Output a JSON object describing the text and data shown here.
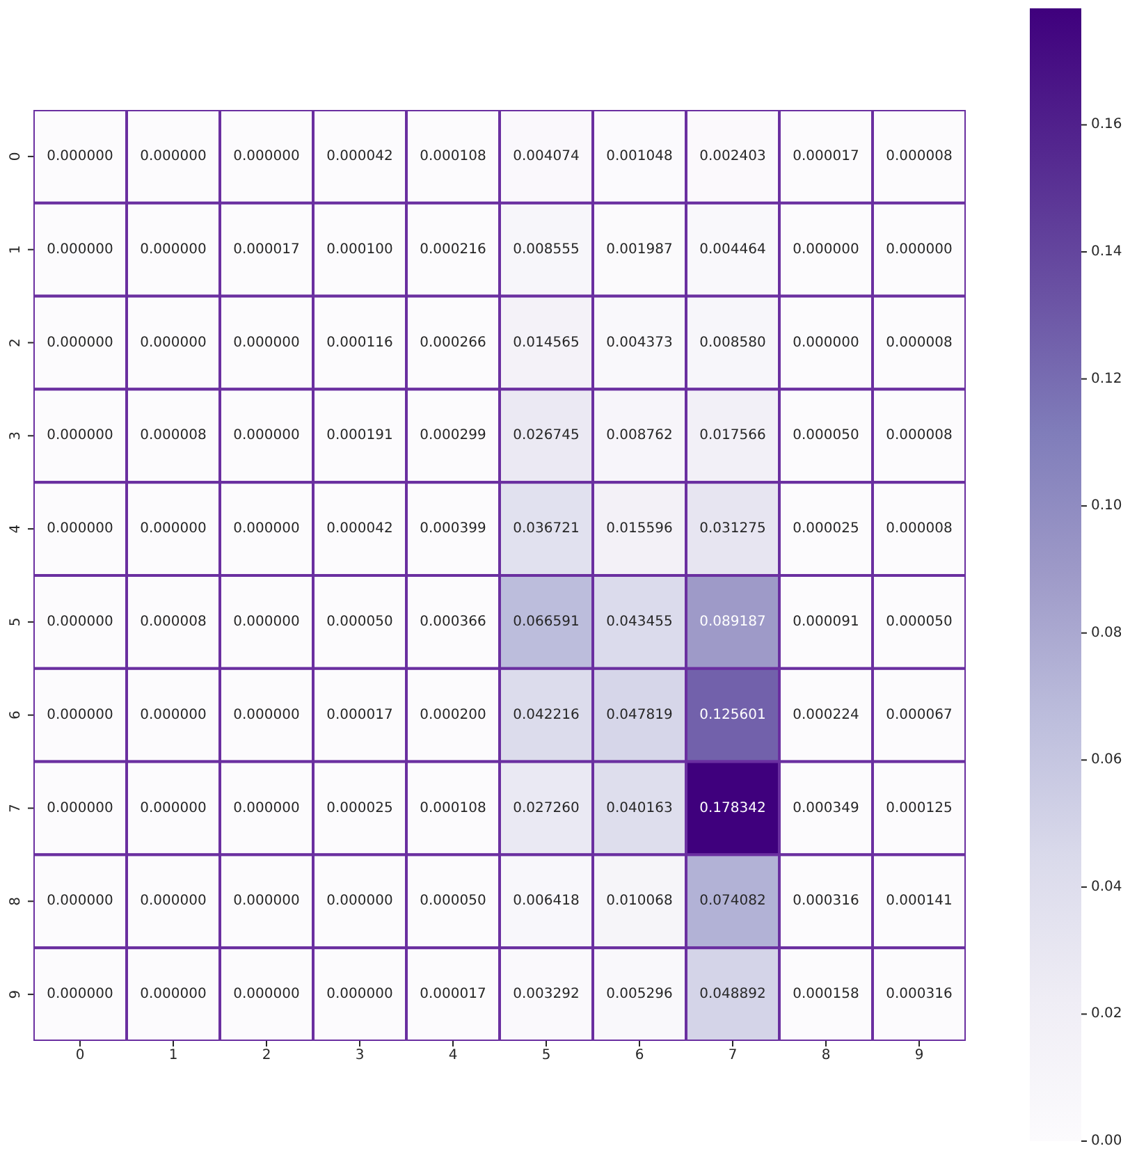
{
  "chart_data": {
    "type": "heatmap",
    "categories": [
      "0",
      "1",
      "2",
      "3",
      "4",
      "5",
      "6",
      "7",
      "8",
      "9"
    ],
    "y_categories": [
      "0",
      "1",
      "2",
      "3",
      "4",
      "5",
      "6",
      "7",
      "8",
      "9"
    ],
    "cells": [
      [
        0,
        0,
        0,
        4.2e-05,
        0.000108,
        0.004074,
        0.001048,
        0.002403,
        1.7e-05,
        8e-06
      ],
      [
        0,
        0,
        1.7e-05,
        0.0001,
        0.000216,
        0.008555,
        0.001987,
        0.004464,
        0,
        0
      ],
      [
        0,
        0,
        0,
        0.000116,
        0.000266,
        0.014565,
        0.004373,
        0.00858,
        0,
        8e-06
      ],
      [
        0,
        8e-06,
        0,
        0.000191,
        0.000299,
        0.026745,
        0.008762,
        0.017566,
        5e-05,
        8e-06
      ],
      [
        0,
        0,
        0,
        4.2e-05,
        0.000399,
        0.036721,
        0.015596,
        0.031275,
        2.5e-05,
        8e-06
      ],
      [
        0,
        8e-06,
        0,
        5e-05,
        0.000366,
        0.066591,
        0.043455,
        0.089187,
        9.1e-05,
        5e-05
      ],
      [
        0,
        0,
        0,
        1.7e-05,
        0.0002,
        0.042216,
        0.047819,
        0.125601,
        0.000224,
        6.7e-05
      ],
      [
        0,
        0,
        0,
        2.5e-05,
        0.000108,
        0.02726,
        0.040163,
        0.178342,
        0.000349,
        0.000125
      ],
      [
        0,
        0,
        0,
        0,
        5e-05,
        0.006418,
        0.010068,
        0.074082,
        0.000316,
        0.000141
      ],
      [
        0,
        0,
        0,
        0,
        1.7e-05,
        0.003292,
        0.005296,
        0.048892,
        0.000158,
        0.000316
      ]
    ],
    "cell_labels": [
      [
        "0.000000",
        "0.000000",
        "0.000000",
        "0.000042",
        "0.000108",
        "0.004074",
        "0.001048",
        "0.002403",
        "0.000017",
        "0.000008"
      ],
      [
        "0.000000",
        "0.000000",
        "0.000017",
        "0.000100",
        "0.000216",
        "0.008555",
        "0.001987",
        "0.004464",
        "0.000000",
        "0.000000"
      ],
      [
        "0.000000",
        "0.000000",
        "0.000000",
        "0.000116",
        "0.000266",
        "0.014565",
        "0.004373",
        "0.008580",
        "0.000000",
        "0.000008"
      ],
      [
        "0.000000",
        "0.000008",
        "0.000000",
        "0.000191",
        "0.000299",
        "0.026745",
        "0.008762",
        "0.017566",
        "0.000050",
        "0.000008"
      ],
      [
        "0.000000",
        "0.000000",
        "0.000000",
        "0.000042",
        "0.000399",
        "0.036721",
        "0.015596",
        "0.031275",
        "0.000025",
        "0.000008"
      ],
      [
        "0.000000",
        "0.000008",
        "0.000000",
        "0.000050",
        "0.000366",
        "0.066591",
        "0.043455",
        "0.089187",
        "0.000091",
        "0.000050"
      ],
      [
        "0.000000",
        "0.000000",
        "0.000000",
        "0.000017",
        "0.000200",
        "0.042216",
        "0.047819",
        "0.125601",
        "0.000224",
        "0.000067"
      ],
      [
        "0.000000",
        "0.000000",
        "0.000000",
        "0.000025",
        "0.000108",
        "0.027260",
        "0.040163",
        "0.178342",
        "0.000349",
        "0.000125"
      ],
      [
        "0.000000",
        "0.000000",
        "0.000000",
        "0.000000",
        "0.000050",
        "0.006418",
        "0.010068",
        "0.074082",
        "0.000316",
        "0.000141"
      ],
      [
        "0.000000",
        "0.000000",
        "0.000000",
        "0.000000",
        "0.000017",
        "0.003292",
        "0.005296",
        "0.048892",
        "0.000158",
        "0.000316"
      ]
    ],
    "clim": [
      0,
      0.178342
    ],
    "cticks": [
      {
        "value": 0,
        "label": "0.00"
      },
      {
        "value": 0.02,
        "label": "0.02"
      },
      {
        "value": 0.04,
        "label": "0.04"
      },
      {
        "value": 0.06,
        "label": "0.06"
      },
      {
        "value": 0.08,
        "label": "0.08"
      },
      {
        "value": 0.1,
        "label": "0.10"
      },
      {
        "value": 0.12,
        "label": "0.12"
      },
      {
        "value": 0.14,
        "label": "0.14"
      },
      {
        "value": 0.16,
        "label": "0.16"
      }
    ]
  }
}
